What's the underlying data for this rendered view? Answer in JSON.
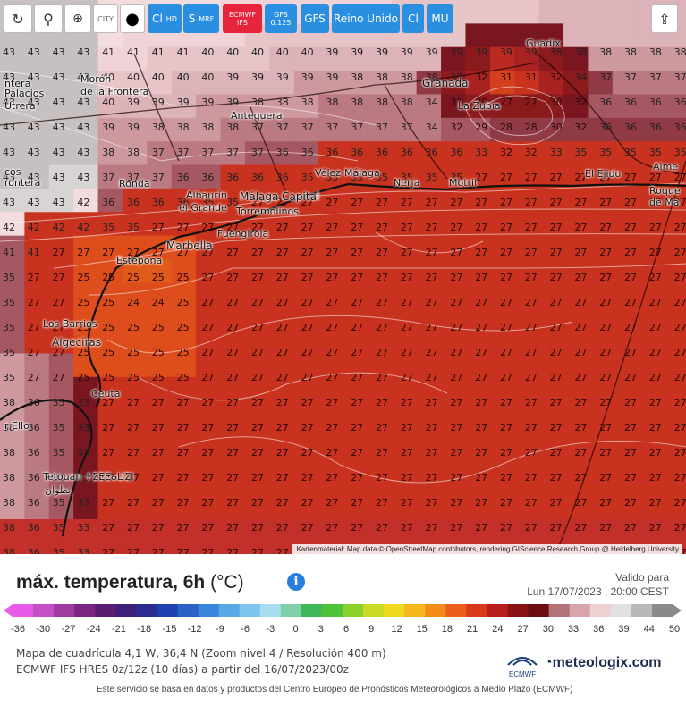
{
  "toolbar": {
    "buttons": [
      {
        "id": "refresh",
        "icon": "refresh-icon",
        "glyph": "↻"
      },
      {
        "id": "location",
        "icon": "map-pin-icon",
        "glyph": "⚲"
      },
      {
        "id": "zoom",
        "icon": "zoom-in-icon",
        "glyph": "⊕"
      },
      {
        "id": "city",
        "label": "CITY"
      },
      {
        "id": "dot",
        "icon": "dot-icon",
        "glyph": "●"
      }
    ],
    "cl_hd": {
      "main": "Cl",
      "sub": "HD"
    },
    "s_mrf": {
      "main": "S",
      "sub": "MRF"
    },
    "ecmwf": {
      "main": "ECMWF",
      "sub": "IFS"
    },
    "gfs_res": {
      "main": "GFS",
      "sub": "0.125"
    },
    "gfs": "GFS",
    "region": "Reino Unido",
    "cl": "Cl",
    "mu": "MU",
    "share_icon": "share-icon"
  },
  "map": {
    "cities": [
      {
        "name": "Guadix"
      },
      {
        "name": "Morón"
      },
      {
        "name": "de la Frontera"
      },
      {
        "name": "Palacios"
      },
      {
        "name": "Utrera"
      },
      {
        "name": "Antequera"
      },
      {
        "name": "Granada"
      },
      {
        "name": "La Zubia"
      },
      {
        "name": "Vélez-Málaga"
      },
      {
        "name": "Nerja"
      },
      {
        "name": "Motril"
      },
      {
        "name": "El Ejido"
      },
      {
        "name": "Alme"
      },
      {
        "name": "Roque"
      },
      {
        "name": "de Ma"
      },
      {
        "name": "Ronda"
      },
      {
        "name": "Alhaurín"
      },
      {
        "name": "el Grande"
      },
      {
        "name": "Málaga Capital"
      },
      {
        "name": "Torremolinos"
      },
      {
        "name": "Fuengirola"
      },
      {
        "name": "Marbella"
      },
      {
        "name": "Estepona"
      },
      {
        "name": "Los Barrios"
      },
      {
        "name": "Algeciras"
      },
      {
        "name": "Ceuta"
      },
      {
        "name": "Tetouan ⵜⵉⵟⵟⴰⵡⵉⵏ"
      },
      {
        "name": "تطوان"
      },
      {
        "name": "r Ello"
      },
      {
        "name": "cos"
      },
      {
        "name": "rontera"
      },
      {
        "name": "ntera"
      }
    ],
    "attribution": "Kartenmaterial: Map data © OpenStreetMap contributors, rendering GIScience Research Group @ Heidelberg University"
  },
  "legend": {
    "title": "máx. temperatura, 6h",
    "unit": "(°C)",
    "info_icon": "info-icon",
    "valid_label": "Valido para",
    "valid_time": "Lun 17/07/2023 , 20:00 CEST",
    "ticks": [
      "-36",
      "-30",
      "-27",
      "-24",
      "-21",
      "-18",
      "-15",
      "-12",
      "-9",
      "-6",
      "-3",
      "0",
      "3",
      "6",
      "9",
      "12",
      "15",
      "18",
      "21",
      "24",
      "27",
      "30",
      "33",
      "36",
      "39",
      "44",
      "50"
    ],
    "colors": [
      "#e85be8",
      "#c64ec6",
      "#a03aa0",
      "#7a2580",
      "#5a1e70",
      "#3e1f7a",
      "#2b2e8f",
      "#1f42b0",
      "#2a62c8",
      "#3a86da",
      "#56a8e6",
      "#7cc6ee",
      "#a8dcf0",
      "#7fd0a8",
      "#3fb85a",
      "#4fc23a",
      "#8ad12e",
      "#c9d925",
      "#f0d81f",
      "#f7b61b",
      "#f28b1a",
      "#ea5f1c",
      "#d93a1c",
      "#b81f1c",
      "#8a1414",
      "#6a0e12",
      "#b3727a",
      "#d9a4aa",
      "#efd0d3",
      "#e0e0e0",
      "#b8b8b8",
      "#8a8a8a"
    ],
    "meta_line1": "Mapa de cuadrícula 4,1 W, 36,4 N (Zoom nivel 4 / Resolución 400 m)",
    "meta_line2": "ECMWF IFS HRES 0z/12z (10 días) a partir del 16/07/2023/00z",
    "ecmwf_logo": "ECMWF",
    "brand": "meteologix.com",
    "footer": "Este servicio se basa en datos y productos del Centro Europeo de Pronósticos Meteorológicos a Medio Plazo (ECMWF)"
  }
}
